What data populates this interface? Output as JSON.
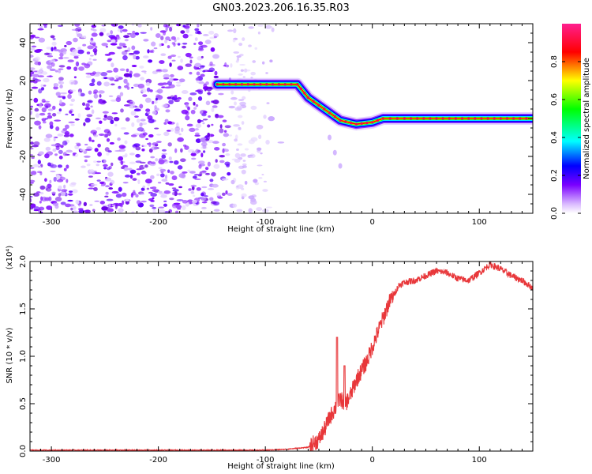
{
  "title": "GN03.2023.206.16.35.R03",
  "chart_data": [
    {
      "type": "heatmap",
      "xlabel": "Height of straight line (km)",
      "ylabel": "Frequency (Hz)",
      "xlim": [
        -320,
        150
      ],
      "ylim": [
        -50,
        50
      ],
      "xticks": [
        -300,
        -200,
        -100,
        0,
        100
      ],
      "yticks": [
        -40,
        -20,
        0,
        20,
        40
      ],
      "colorbar": {
        "label": "Normalized spectral amplitude",
        "range": [
          0,
          1
        ],
        "ticks": [
          "0.0",
          "0.2",
          "0.4",
          "0.6",
          "0.8"
        ]
      },
      "noise_region": {
        "x": [
          -320,
          -100
        ],
        "y": [
          -50,
          50
        ]
      },
      "ridge": [
        {
          "x": -145,
          "y": 18
        },
        {
          "x": -70,
          "y": 18
        },
        {
          "x": -60,
          "y": 11
        },
        {
          "x": -45,
          "y": 5
        },
        {
          "x": -30,
          "y": -1
        },
        {
          "x": -15,
          "y": -3
        },
        {
          "x": 0,
          "y": -2
        },
        {
          "x": 10,
          "y": 0
        },
        {
          "x": 30,
          "y": 0
        },
        {
          "x": 150,
          "y": 0
        }
      ]
    },
    {
      "type": "line",
      "xlabel": "Height of straight line (km)",
      "ylabel": "SNR (10 * v/v)",
      "yscale_label": "(x10⁴)",
      "xlim": [
        -320,
        150
      ],
      "ylim": [
        0,
        2.0
      ],
      "xticks": [
        -300,
        -200,
        -100,
        0,
        100
      ],
      "yticks": [
        "0.0",
        "0.5",
        "1.0",
        "1.5",
        "2.0"
      ],
      "color": "#e8373a",
      "series": [
        {
          "x": [
            -320,
            -100,
            -80,
            -60,
            -50,
            -45,
            -40,
            -35,
            -30,
            -25,
            -20,
            -15,
            -10,
            -5,
            0,
            5,
            10,
            15,
            20,
            25,
            30,
            40,
            50,
            60,
            70,
            80,
            90,
            100,
            110,
            120,
            130,
            140,
            150
          ],
          "values": [
            0.01,
            0.01,
            0.02,
            0.04,
            0.12,
            0.22,
            0.35,
            0.45,
            0.55,
            0.5,
            0.6,
            0.75,
            0.85,
            0.95,
            1.1,
            1.25,
            1.4,
            1.55,
            1.65,
            1.75,
            1.78,
            1.8,
            1.85,
            1.9,
            1.88,
            1.82,
            1.8,
            1.88,
            1.97,
            1.92,
            1.85,
            1.8,
            1.72
          ]
        }
      ],
      "spikes": [
        {
          "x": -33,
          "y": 1.2
        },
        {
          "x": -26,
          "y": 0.9
        }
      ]
    }
  ]
}
